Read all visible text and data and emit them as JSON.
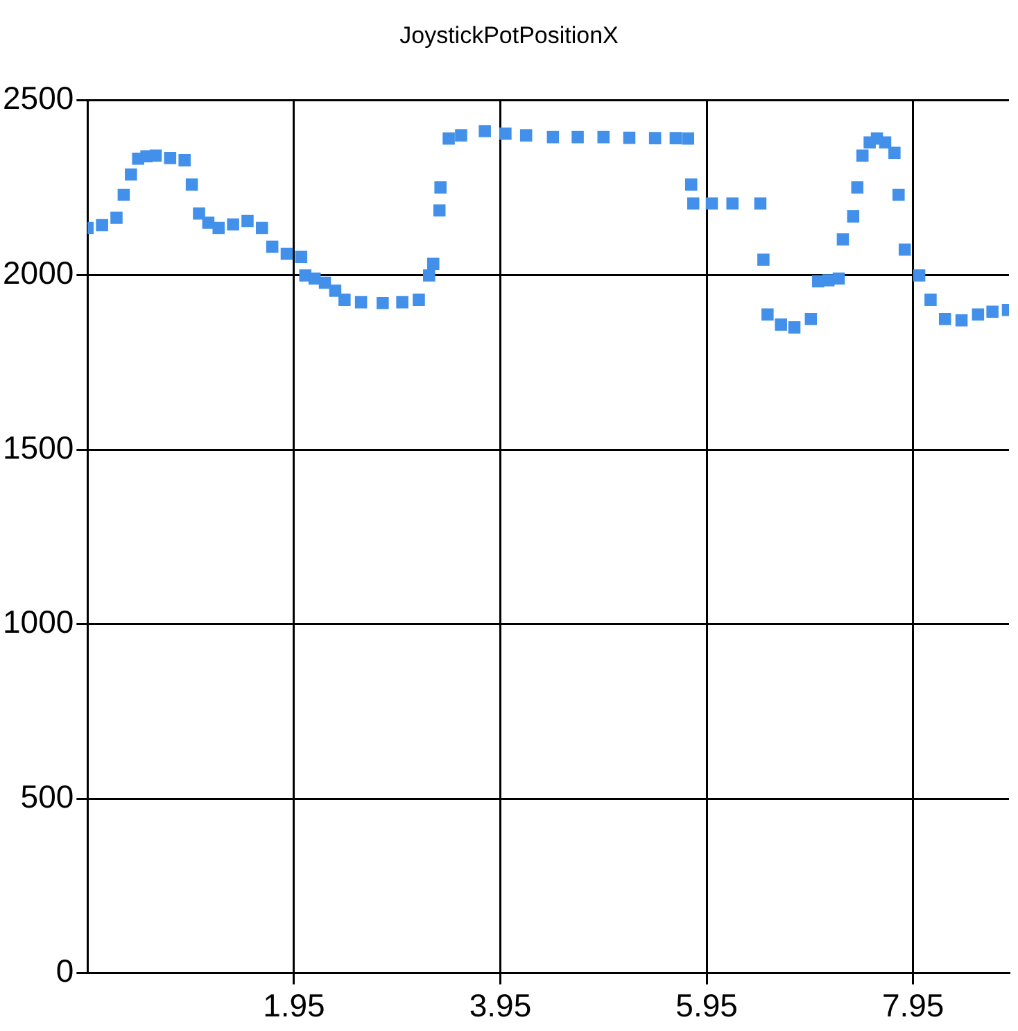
{
  "chart_data": {
    "type": "scatter",
    "title": "JoystickPotPositionX",
    "marker": "square",
    "grid": true,
    "legend": false,
    "xlim": [
      -0.05,
      8.88
    ],
    "xticks": [
      1.95,
      3.95,
      5.95,
      7.95
    ],
    "ylim": [
      0,
      2500
    ],
    "yticks": [
      0,
      500,
      1000,
      1500,
      2000,
      2500
    ],
    "series": [
      {
        "color": "#4290ea",
        "x": [
          -0.05,
          0.09,
          0.23,
          0.3,
          0.37,
          0.44,
          0.52,
          0.61,
          0.75,
          0.89,
          0.96,
          1.03,
          1.12,
          1.22,
          1.36,
          1.5,
          1.64,
          1.74,
          1.88,
          2.02,
          2.06,
          2.15,
          2.25,
          2.35,
          2.44,
          2.6,
          2.81,
          3.0,
          3.16,
          3.26,
          3.3,
          3.36,
          3.37,
          3.45,
          3.57,
          3.8,
          4.0,
          4.2,
          4.46,
          4.7,
          4.95,
          5.2,
          5.45,
          5.65,
          5.77,
          5.8,
          5.82,
          6.0,
          6.2,
          6.47,
          6.5,
          6.54,
          6.67,
          6.8,
          6.96,
          7.03,
          7.13,
          7.23,
          7.27,
          7.37,
          7.41,
          7.46,
          7.53,
          7.6,
          7.68,
          7.77,
          7.81,
          7.87,
          8.01,
          8.12,
          8.26,
          8.42,
          8.58,
          8.72,
          8.87
        ],
        "values": [
          2135,
          2143,
          2164,
          2230,
          2288,
          2333,
          2340,
          2342,
          2335,
          2329,
          2259,
          2176,
          2150,
          2135,
          2145,
          2155,
          2135,
          2081,
          2061,
          2052,
          1999,
          1990,
          1978,
          1955,
          1929,
          1922,
          1920,
          1922,
          1929,
          1999,
          2032,
          2185,
          2251,
          2391,
          2400,
          2412,
          2405,
          2400,
          2395,
          2395,
          2395,
          2393,
          2392,
          2392,
          2391,
          2259,
          2205,
          2205,
          2205,
          2205,
          2044,
          1887,
          1858,
          1850,
          1874,
          1982,
          1985,
          1990,
          2102,
          2168,
          2251,
          2342,
          2380,
          2391,
          2380,
          2350,
          2230,
          2073,
          1999,
          1929,
          1874,
          1870,
          1887,
          1895,
          1900
        ]
      }
    ]
  }
}
